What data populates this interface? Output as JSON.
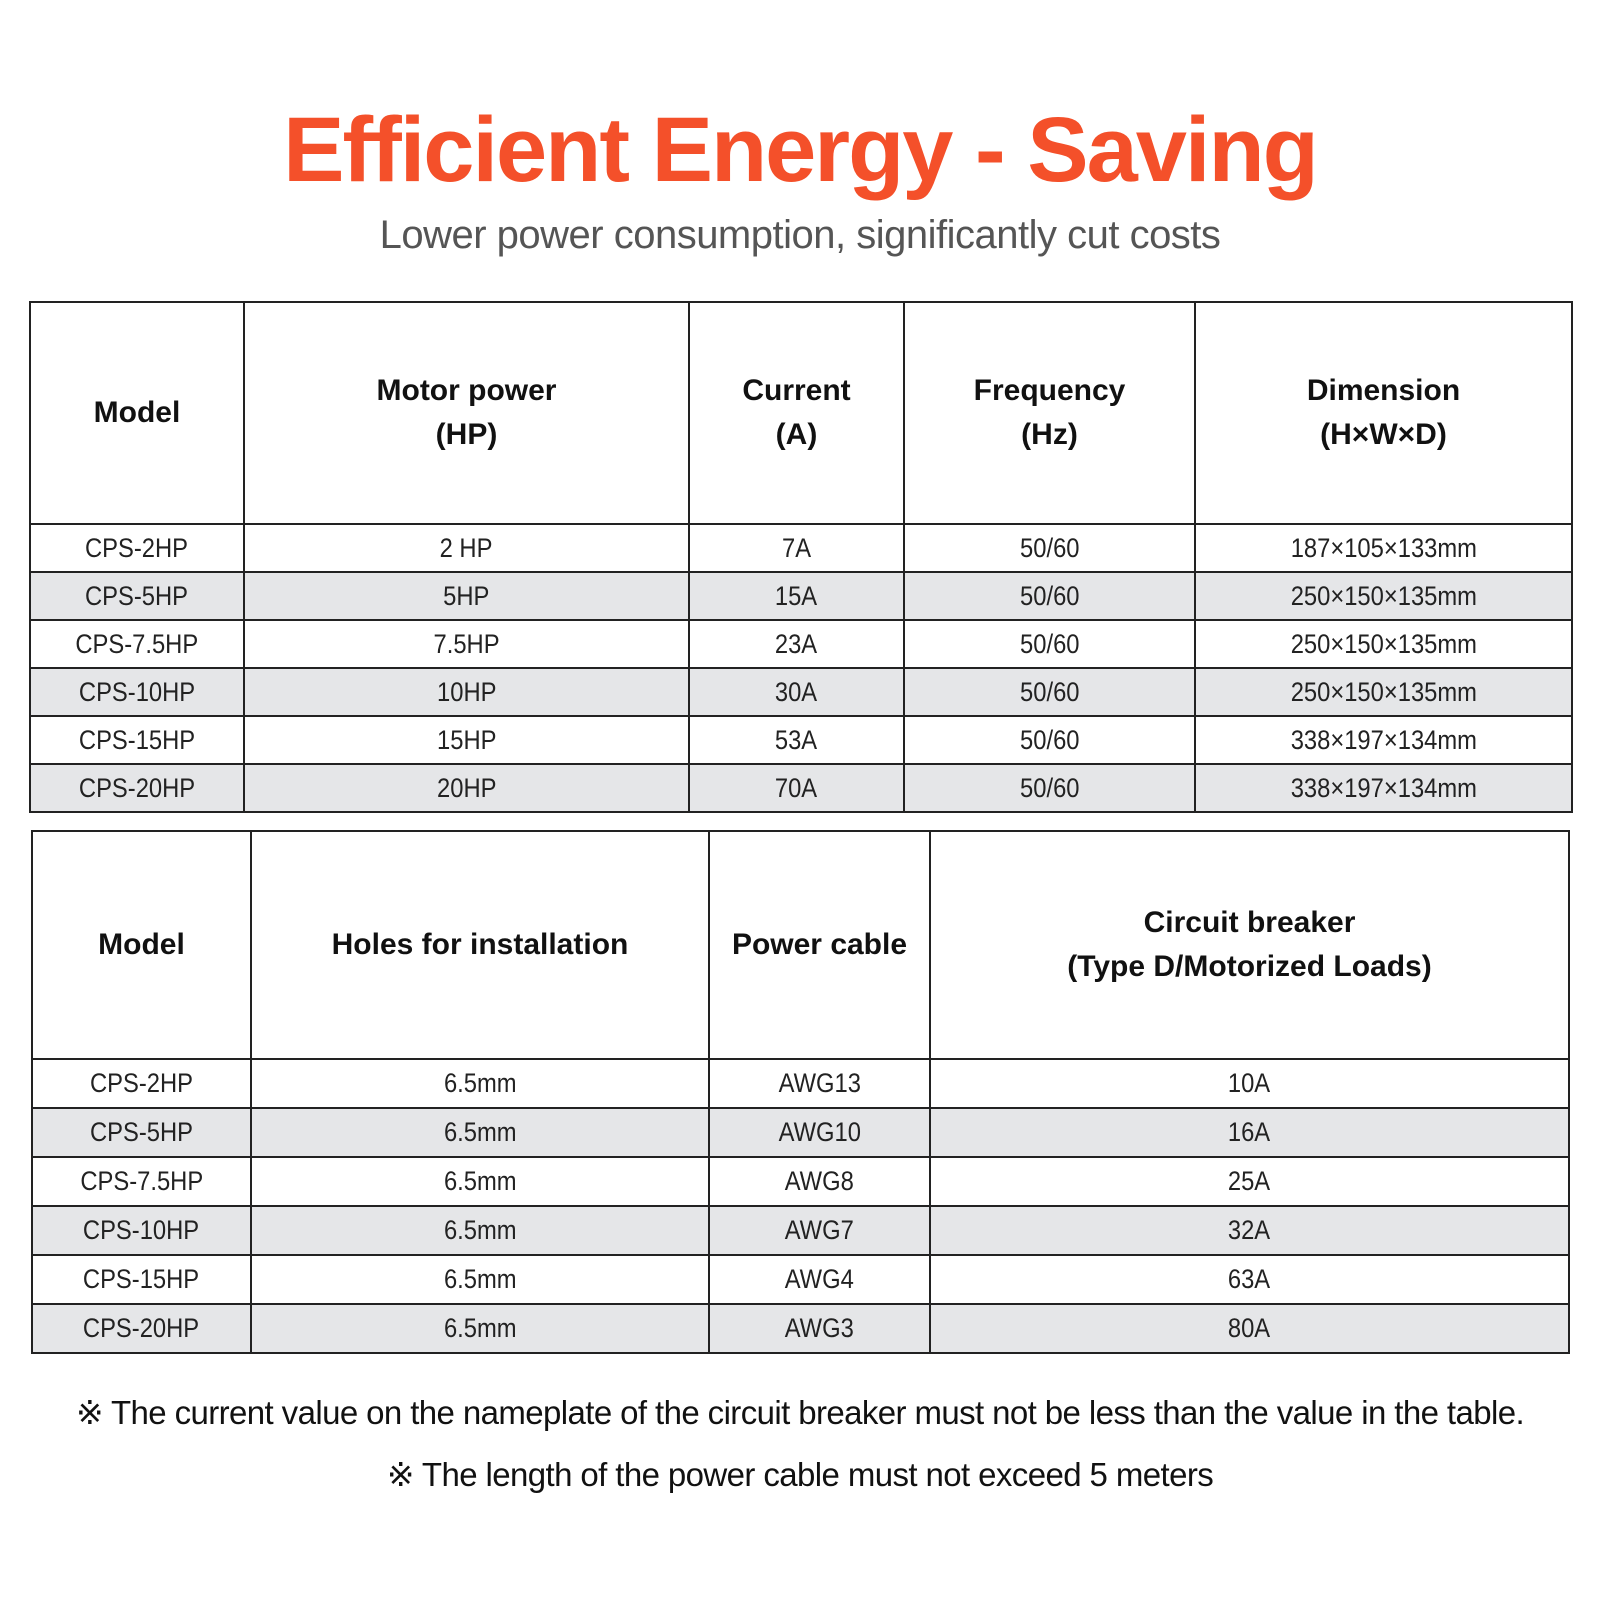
{
  "header": {
    "title": "Efficient Energy - Saving",
    "subtitle": "Lower power consumption, significantly cut costs",
    "title_color": "#f4502a"
  },
  "table1": {
    "headers": [
      [
        "Model"
      ],
      [
        "Motor power",
        "(HP)"
      ],
      [
        "Current",
        "(A)"
      ],
      [
        "Frequency",
        "(Hz)"
      ],
      [
        "Dimension",
        "(H×W×D)"
      ]
    ],
    "rows": [
      [
        "CPS-2HP",
        "2 HP",
        "7A",
        "50/60",
        "187×105×133mm"
      ],
      [
        "CPS-5HP",
        "5HP",
        "15A",
        "50/60",
        "250×150×135mm"
      ],
      [
        "CPS-7.5HP",
        "7.5HP",
        "23A",
        "50/60",
        "250×150×135mm"
      ],
      [
        "CPS-10HP",
        "10HP",
        "30A",
        "50/60",
        "250×150×135mm"
      ],
      [
        "CPS-15HP",
        "15HP",
        "53A",
        "50/60",
        "338×197×134mm"
      ],
      [
        "CPS-20HP",
        "20HP",
        "70A",
        "50/60",
        "338×197×134mm"
      ]
    ]
  },
  "table2": {
    "headers": [
      [
        "Model"
      ],
      [
        "Holes for installation"
      ],
      [
        "Power cable"
      ],
      [
        "Circuit breaker",
        "(Type D/Motorized Loads)"
      ]
    ],
    "rows": [
      [
        "CPS-2HP",
        "6.5mm",
        "AWG13",
        "10A"
      ],
      [
        "CPS-5HP",
        "6.5mm",
        "AWG10",
        "16A"
      ],
      [
        "CPS-7.5HP",
        "6.5mm",
        "AWG8",
        "25A"
      ],
      [
        "CPS-10HP",
        "6.5mm",
        "AWG7",
        "32A"
      ],
      [
        "CPS-15HP",
        "6.5mm",
        "AWG4",
        "63A"
      ],
      [
        "CPS-20HP",
        "6.5mm",
        "AWG3",
        "80A"
      ]
    ]
  },
  "notes": [
    "※ The current value on the nameplate of the circuit breaker must not be less than the value in the table.",
    "※ The length of the power cable must not exceed 5 meters"
  ]
}
